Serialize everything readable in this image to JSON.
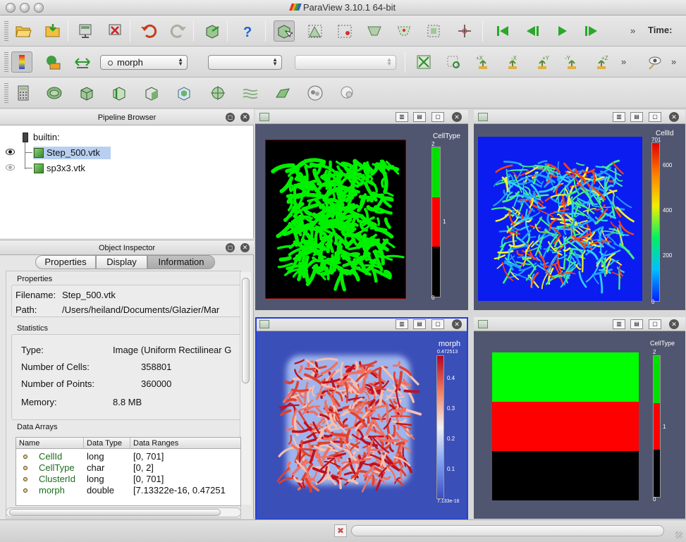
{
  "window": {
    "title": "ParaView 3.10.1 64-bit",
    "time_label": "Time:"
  },
  "toolbar": {
    "variable_combo": "morph",
    "representation_combo": "",
    "secondary_combo": "",
    "overflow_glyph": "»"
  },
  "pipeline_browser": {
    "title": "Pipeline Browser",
    "items": [
      {
        "label": "builtin:"
      },
      {
        "label": "Step_500.vtk",
        "selected": true,
        "visible": true
      },
      {
        "label": "sp3x3.vtk",
        "selected": false,
        "visible": false
      }
    ]
  },
  "object_inspector": {
    "title": "Object Inspector",
    "tabs": [
      "Properties",
      "Display",
      "Information"
    ],
    "active_tab": "Information",
    "properties": {
      "heading": "Properties",
      "filename_label": "Filename:",
      "filename": "Step_500.vtk",
      "path_label": "Path:",
      "path": "/Users/heiland/Documents/Glazier/Mar"
    },
    "statistics": {
      "heading": "Statistics",
      "type_label": "Type:",
      "type": "Image (Uniform Rectilinear G",
      "cells_label": "Number of Cells:",
      "cells": "358801",
      "points_label": "Number of Points:",
      "points": "360000",
      "memory_label": "Memory:",
      "memory": "8.8 MB"
    },
    "data_arrays": {
      "heading": "Data Arrays",
      "columns": [
        "Name",
        "Data Type",
        "Data Ranges"
      ],
      "rows": [
        {
          "name": "CellId",
          "type": "long",
          "range": "[0, 701]"
        },
        {
          "name": "CellType",
          "type": "char",
          "range": "[0, 2]"
        },
        {
          "name": "ClusterId",
          "type": "long",
          "range": "[0, 701]"
        },
        {
          "name": "morph",
          "type": "double",
          "range": "[7.13322e-16, 0.47251"
        }
      ]
    }
  },
  "views": {
    "top_left": {
      "bar_title": "CellType",
      "ticks": [
        "2",
        "1",
        "0"
      ]
    },
    "top_right": {
      "bar_title": "CellId",
      "ticks": [
        "701",
        "600",
        "400",
        "200",
        "0"
      ]
    },
    "bottom_left": {
      "bar_title": "morph",
      "ticks": [
        "0.472513",
        "0.4",
        "0.3",
        "0.2",
        "0.1",
        "7.133e-16"
      ]
    },
    "bottom_right": {
      "bar_title": "CellType",
      "ticks": [
        "2",
        "1",
        "0"
      ]
    }
  },
  "colors": {
    "view_bg": "#515670",
    "green": "#00ff00",
    "red": "#ff0000",
    "selection": "#b8d0f0"
  }
}
